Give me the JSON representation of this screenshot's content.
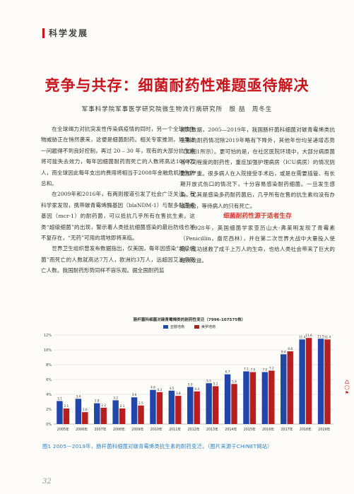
{
  "header": {
    "section": "科学发展"
  },
  "title": "竞争与共存：细菌耐药性难题亟待解决",
  "authors": "军事科学院军事医学研究院微生物流行病研究所　殷 喆　周冬生",
  "left_column": [
    "在全球竭力对抗突发性传染病疫情的同时，另一个全球性生物威胁正在悄然袭来，这便是细菌耐药。相关专家推测，如果这一问题得不到良好控制，再过 20 – 30 年，现有的大部分抗生素将可能失去效力，每年因细菌耐药而死亡的人数将高达1000万人，而全球因此每年支出的费用将相当于2008年金融危机损失的总和。",
    "在2009年和2016年，有两则报道引发了社会广泛关注。有科学家发现，携带碳青霉烯酶基因（blaNDM-1）与耐多黏菌素基因（mcr-1）的耐药菌，可以抵抗几乎所有在售抗生素。这类“超级细菌”的出现，警示着人类抵抗细菌感染的最后防线也将不复存在，“无药”可用的境地即将来临。",
    "世界卫生组织曾发布数据指出，仅美国，每年因感染“超级细菌”而死亡的人数就高达7万人，欧洲约3万人，远超因艾滋病死亡人数。我国耐药形势同样不容乐观。据全国耐药监"
  ],
  "right_column": {
    "p1": "测网数据，2005—2019年，我国肠杆菌科细菌对碳青霉烯类抗生素的耐药情况除2019年略有下降外，其他年份均呈递增态势（如图1所示）。更可怕的是，在社区医院环境中，大部分病原菌有不同程度的耐药性，重症加强护理病房（ICU病房）的情况则更加严重。很多病人在入院接受手术后，或是在需要插管、有长期开放式伤口的情况下，十分容易感染耐药细菌。一旦发生感染，尤其是感染多药耐药菌后，几乎所有在售的抗生素均没有办法治愈，等待病人的只有死亡。",
    "subhead": "细菌耐药性源于适者生存",
    "p2": "1928年，英国细菌学家亚历山大·弗莱明发现了青霉素（Penicillin，盘尼西林），并在第二次世界大战中大量投入使用，成功拯救了成千上万人的生命，也给人类社会带来了巨大的经济效益。"
  },
  "chart_data": {
    "type": "bar",
    "title": "肠杆菌科细菌对碳青霉烯类的耐药性变迁（7996-107575株）",
    "legend": [
      "亚胺培南",
      "美罗培南"
    ],
    "categories": [
      "2005年",
      "2006年",
      "2007年",
      "2008年",
      "2009年",
      "2010年",
      "2011年",
      "2012年",
      "2013年",
      "2014年",
      "2015年",
      "2016年",
      "2017年",
      "2018年",
      "2019年"
    ],
    "series": [
      {
        "name": "亚胺培南",
        "color": "#1f46a8",
        "values": [
          3.1,
          3.4,
          2.8,
          3.2,
          3.6,
          4.6,
          4.5,
          5.0,
          5.5,
          6.7,
          7.1,
          7.0,
          9.4,
          11.4,
          11.5
        ]
      },
      {
        "name": "美罗培南",
        "color": "#b81d20",
        "values": [
          2.1,
          1.6,
          2.2,
          2.1,
          2.5,
          4.3,
          3.8,
          4.4,
          5.1,
          5.4,
          7.0,
          7.2,
          9.8,
          11.6,
          11.4
        ]
      }
    ],
    "data_labels": [
      [
        "3.1",
        "2.1"
      ],
      [
        "3.4",
        "1.6"
      ],
      [
        "2.8",
        "2.2"
      ],
      [
        "3.2",
        "2.1"
      ],
      [
        "3.6",
        "2.5"
      ],
      [
        "4.6",
        "4.3"
      ],
      [
        "4.5",
        "3.8"
      ],
      [
        "5.0",
        "4.4"
      ],
      [
        "5.5",
        "5.1"
      ],
      [
        "6.7",
        "5.4"
      ],
      [
        "7.1",
        "7.0"
      ],
      [
        "7.0",
        "7.2"
      ],
      [
        "9.4",
        "9.8"
      ],
      [
        "11.4",
        "11.6"
      ],
      [
        "11.5",
        "11.4"
      ]
    ],
    "y_ticks": [
      "0%",
      "2%",
      "4%",
      "6%",
      "8%",
      "10%",
      "12%"
    ],
    "ylim": [
      0,
      12
    ],
    "grid": true,
    "legend_position": "top-center"
  },
  "caption": "图1 2005—2019年，肠杆菌科细菌对碳青霉烯类抗生素的耐药变迁。（图片来源于CHINET网站）",
  "page_number": "32",
  "side_marks": [
    "🛆",
    "◯",
    "⚑"
  ]
}
